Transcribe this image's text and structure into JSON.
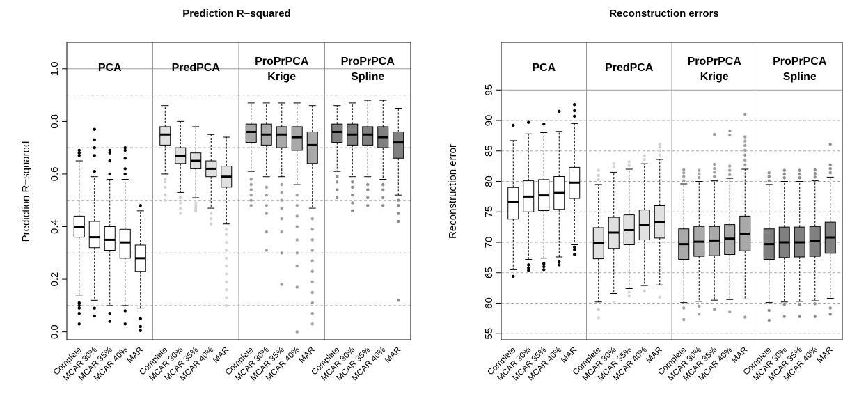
{
  "chart_data": [
    {
      "type": "boxplot",
      "title": "Prediction R−squared",
      "ylabel": "Prediction R−squared",
      "ylim": [
        0,
        1.0
      ],
      "yticks": [
        "0.0",
        "0.2",
        "0.4",
        "0.6",
        "0.8",
        "1.0"
      ],
      "ytick_values": [
        0,
        0.2,
        0.4,
        0.6,
        0.8,
        1.0
      ],
      "gridlines": [
        0.1,
        0.3,
        0.5,
        0.7,
        0.9
      ],
      "categories": [
        "Complete",
        "MCAR 30%",
        "MCAR 35%",
        "MCAR 40%",
        "MAR"
      ],
      "panels": [
        {
          "label": [
            "PCA"
          ],
          "fill": "#ffffff",
          "out": "#000000",
          "boxes": [
            {
              "q1": 0.36,
              "med": 0.4,
              "q3": 0.44,
              "wlo": 0.14,
              "whi": 0.65,
              "out": [
                0.03,
                0.07,
                0.09,
                0.1,
                0.11,
                0.67,
                0.68,
                0.69
              ]
            },
            {
              "q1": 0.32,
              "med": 0.36,
              "q3": 0.42,
              "wlo": 0.12,
              "whi": 0.59,
              "out": [
                0.06,
                0.09,
                0.61,
                0.67,
                0.7,
                0.73,
                0.77
              ]
            },
            {
              "q1": 0.31,
              "med": 0.35,
              "q3": 0.4,
              "wlo": 0.1,
              "whi": 0.58,
              "out": [
                0.04,
                0.07,
                0.6,
                0.65,
                0.68,
                0.69
              ]
            },
            {
              "q1": 0.28,
              "med": 0.34,
              "q3": 0.39,
              "wlo": 0.1,
              "whi": 0.58,
              "out": [
                0.03,
                0.08,
                0.6,
                0.62,
                0.66,
                0.69,
                0.7
              ]
            },
            {
              "q1": 0.23,
              "med": 0.28,
              "q3": 0.33,
              "wlo": 0.09,
              "whi": 0.46,
              "out": [
                0.005,
                0.02,
                0.05,
                0.48
              ]
            }
          ]
        },
        {
          "label": [
            "PredPCA"
          ],
          "fill": "#e0e0e0",
          "out": "#d3d3d3",
          "boxes": [
            {
              "q1": 0.71,
              "med": 0.75,
              "q3": 0.78,
              "wlo": 0.6,
              "whi": 0.86,
              "out": [
                0.5,
                0.52,
                0.55,
                0.57,
                0.58
              ]
            },
            {
              "q1": 0.64,
              "med": 0.67,
              "q3": 0.7,
              "wlo": 0.53,
              "whi": 0.8,
              "out": [
                0.45,
                0.47,
                0.49,
                0.51
              ]
            },
            {
              "q1": 0.62,
              "med": 0.65,
              "q3": 0.68,
              "wlo": 0.51,
              "whi": 0.78,
              "out": [
                0.46,
                0.47,
                0.48,
                0.49
              ]
            },
            {
              "q1": 0.59,
              "med": 0.62,
              "q3": 0.65,
              "wlo": 0.47,
              "whi": 0.75,
              "out": [
                0.41,
                0.43,
                0.45
              ]
            },
            {
              "q1": 0.55,
              "med": 0.59,
              "q3": 0.63,
              "wlo": 0.41,
              "whi": 0.74,
              "out": [
                0.1,
                0.13,
                0.16,
                0.19,
                0.22,
                0.25,
                0.28,
                0.31,
                0.34,
                0.37,
                0.39
              ]
            }
          ]
        },
        {
          "label": [
            "ProPrPCA",
            "Krige"
          ],
          "fill": "#a9a9a9",
          "out": "#a0a0a0",
          "boxes": [
            {
              "q1": 0.72,
              "med": 0.76,
              "q3": 0.79,
              "wlo": 0.61,
              "whi": 0.87,
              "out": [
                0.48,
                0.5,
                0.52,
                0.54,
                0.56,
                0.58
              ]
            },
            {
              "q1": 0.71,
              "med": 0.75,
              "q3": 0.79,
              "wlo": 0.59,
              "whi": 0.87,
              "out": [
                0.31,
                0.38,
                0.45,
                0.48,
                0.52,
                0.55
              ]
            },
            {
              "q1": 0.7,
              "med": 0.75,
              "q3": 0.78,
              "wlo": 0.59,
              "whi": 0.87,
              "out": [
                0.18,
                0.3,
                0.38,
                0.43,
                0.47,
                0.5,
                0.53,
                0.56
              ]
            },
            {
              "q1": 0.69,
              "med": 0.74,
              "q3": 0.78,
              "wlo": 0.56,
              "whi": 0.87,
              "out": [
                0.0,
                0.17,
                0.25,
                0.3,
                0.35,
                0.4,
                0.44,
                0.48,
                0.52
              ]
            },
            {
              "q1": 0.64,
              "med": 0.71,
              "q3": 0.76,
              "wlo": 0.47,
              "whi": 0.86,
              "out": [
                0.03,
                0.07,
                0.11,
                0.15,
                0.19,
                0.23,
                0.27,
                0.31,
                0.35,
                0.39,
                0.43
              ]
            }
          ]
        },
        {
          "label": [
            "ProPrPCA",
            "Spline"
          ],
          "fill": "#808080",
          "out": "#8c8c8c",
          "boxes": [
            {
              "q1": 0.72,
              "med": 0.76,
              "q3": 0.79,
              "wlo": 0.61,
              "whi": 0.86,
              "out": [
                0.51,
                0.54,
                0.57,
                0.59
              ]
            },
            {
              "q1": 0.71,
              "med": 0.75,
              "q3": 0.79,
              "wlo": 0.59,
              "whi": 0.87,
              "out": [
                0.46,
                0.49,
                0.52,
                0.55,
                0.57
              ]
            },
            {
              "q1": 0.71,
              "med": 0.75,
              "q3": 0.78,
              "wlo": 0.59,
              "whi": 0.88,
              "out": [
                0.48,
                0.51,
                0.54,
                0.56
              ]
            },
            {
              "q1": 0.7,
              "med": 0.74,
              "q3": 0.78,
              "wlo": 0.58,
              "whi": 0.88,
              "out": [
                0.48,
                0.51,
                0.54,
                0.56
              ]
            },
            {
              "q1": 0.66,
              "med": 0.72,
              "q3": 0.76,
              "wlo": 0.52,
              "whi": 0.85,
              "out": [
                0.12,
                0.42,
                0.45,
                0.48,
                0.5
              ]
            }
          ]
        }
      ]
    },
    {
      "type": "boxplot",
      "title": "Reconstruction errors",
      "ylabel": "Reconstruction error",
      "ylim": [
        54,
        100
      ],
      "yticks": [
        "55",
        "60",
        "65",
        "70",
        "75",
        "80",
        "85",
        "90",
        "95"
      ],
      "ytick_values": [
        55,
        60,
        65,
        70,
        75,
        80,
        85,
        90,
        95
      ],
      "gridlines": [
        55,
        60,
        65,
        70,
        75,
        80,
        85,
        90
      ],
      "categories": [
        "Complete",
        "MCAR 30%",
        "MCAR 35%",
        "MCAR 40%",
        "MAR"
      ],
      "panels": [
        {
          "label": [
            "PCA"
          ],
          "fill": "#ffffff",
          "out": "#000000",
          "boxes": [
            {
              "q1": 73.8,
              "med": 76.6,
              "q3": 79.0,
              "wlo": 65.5,
              "whi": 86.7,
              "out": [
                64.4,
                89.2
              ]
            },
            {
              "q1": 75.0,
              "med": 77.5,
              "q3": 80.1,
              "wlo": 67.2,
              "whi": 87.8,
              "out": [
                65.4,
                65.8,
                66.3,
                89.7
              ]
            },
            {
              "q1": 75.2,
              "med": 77.7,
              "q3": 80.3,
              "wlo": 67.4,
              "whi": 88.0,
              "out": [
                65.5,
                66.0,
                66.5,
                89.4
              ]
            },
            {
              "q1": 75.4,
              "med": 78.1,
              "q3": 80.8,
              "wlo": 67.6,
              "whi": 88.2,
              "out": [
                66.3,
                66.8,
                91.5
              ]
            },
            {
              "q1": 77.2,
              "med": 79.8,
              "q3": 82.3,
              "wlo": 69.6,
              "whi": 89.5,
              "out": [
                68.0,
                68.8,
                69.2,
                90.7,
                91.6,
                92.6
              ]
            }
          ]
        },
        {
          "label": [
            "PredPCA"
          ],
          "fill": "#e0e0e0",
          "out": "#d3d3d3",
          "boxes": [
            {
              "q1": 67.3,
              "med": 69.9,
              "q3": 72.4,
              "wlo": 60.2,
              "whi": 79.5,
              "out": [
                57.6,
                59.0,
                80.3,
                81.0,
                81.8
              ]
            },
            {
              "q1": 69.0,
              "med": 71.6,
              "q3": 74.1,
              "wlo": 61.6,
              "whi": 81.5,
              "out": [
                60.1,
                82.4,
                83.0
              ]
            },
            {
              "q1": 69.6,
              "med": 72.0,
              "q3": 74.5,
              "wlo": 62.4,
              "whi": 82.0,
              "out": [
                61.2,
                61.8,
                82.6,
                83.2
              ]
            },
            {
              "q1": 70.4,
              "med": 72.8,
              "q3": 75.3,
              "wlo": 62.9,
              "whi": 82.9,
              "out": [
                62.0,
                83.6,
                84.2
              ]
            },
            {
              "q1": 70.7,
              "med": 73.3,
              "q3": 76.0,
              "wlo": 63.0,
              "whi": 83.6,
              "out": [
                61.0,
                84.3,
                85.0,
                85.6,
                86.1
              ]
            }
          ]
        },
        {
          "label": [
            "ProPrPCA",
            "Krige"
          ],
          "fill": "#a9a9a9",
          "out": "#a0a0a0",
          "boxes": [
            {
              "q1": 67.2,
              "med": 69.7,
              "q3": 72.2,
              "wlo": 60.1,
              "whi": 79.6,
              "out": [
                57.3,
                59.2,
                80.1,
                80.8,
                81.4,
                81.9
              ]
            },
            {
              "q1": 67.7,
              "med": 70.1,
              "q3": 72.6,
              "wlo": 60.3,
              "whi": 80.0,
              "out": [
                58.2,
                59.5,
                80.6,
                81.2,
                81.8
              ]
            },
            {
              "q1": 67.8,
              "med": 70.3,
              "q3": 72.6,
              "wlo": 60.5,
              "whi": 80.1,
              "out": [
                59.0,
                80.8,
                81.5,
                82.1,
                82.8,
                87.7
              ]
            },
            {
              "q1": 68.0,
              "med": 70.6,
              "q3": 72.9,
              "wlo": 60.6,
              "whi": 80.5,
              "out": [
                58.6,
                81.1,
                81.8,
                82.5,
                87.6,
                88.3
              ]
            },
            {
              "q1": 68.6,
              "med": 71.4,
              "q3": 74.3,
              "wlo": 60.7,
              "whi": 82.0,
              "out": [
                57.7,
                82.7,
                83.5,
                84.3,
                85.1,
                85.9,
                86.6,
                87.3,
                91.0
              ]
            }
          ]
        },
        {
          "label": [
            "ProPrPCA",
            "Spline"
          ],
          "fill": "#808080",
          "out": "#8c8c8c",
          "boxes": [
            {
              "q1": 67.2,
              "med": 69.7,
              "q3": 72.2,
              "wlo": 60.1,
              "whi": 79.5,
              "out": [
                57.2,
                58.8,
                80.1,
                80.8,
                81.4
              ]
            },
            {
              "q1": 67.5,
              "med": 70.0,
              "q3": 72.5,
              "wlo": 60.2,
              "whi": 80.0,
              "out": [
                57.8,
                59.8,
                80.6,
                81.2,
                81.8
              ]
            },
            {
              "q1": 67.6,
              "med": 70.0,
              "q3": 72.5,
              "wlo": 60.3,
              "whi": 80.0,
              "out": [
                57.8,
                59.8,
                80.6,
                81.2,
                81.8
              ]
            },
            {
              "q1": 67.7,
              "med": 70.2,
              "q3": 72.6,
              "wlo": 60.4,
              "whi": 80.1,
              "out": [
                57.8,
                59.9,
                80.7,
                81.3,
                81.9
              ]
            },
            {
              "q1": 68.2,
              "med": 70.8,
              "q3": 73.3,
              "wlo": 60.8,
              "whi": 80.7,
              "out": [
                58.2,
                59.2,
                81.4,
                82.1,
                82.7,
                86.1
              ]
            }
          ]
        }
      ]
    }
  ]
}
